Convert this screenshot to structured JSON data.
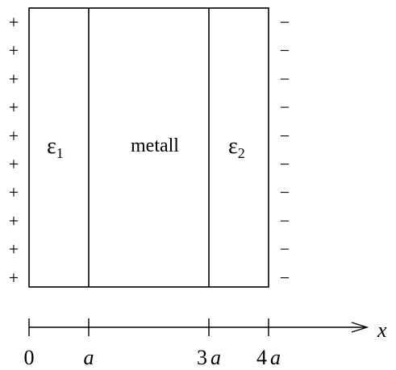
{
  "charges": {
    "left_sign": "+",
    "right_sign": "−",
    "count": 10
  },
  "regions": {
    "left": {
      "symbol": "ε",
      "subscript": "1"
    },
    "middle": {
      "label": "metall"
    },
    "right": {
      "symbol": "ε",
      "subscript": "2"
    }
  },
  "axis": {
    "variable": "x",
    "ticks": [
      {
        "number": "0",
        "var": ""
      },
      {
        "number": "",
        "var": "a"
      },
      {
        "number": "3",
        "var": "a"
      },
      {
        "number": "4",
        "var": "a"
      }
    ]
  }
}
